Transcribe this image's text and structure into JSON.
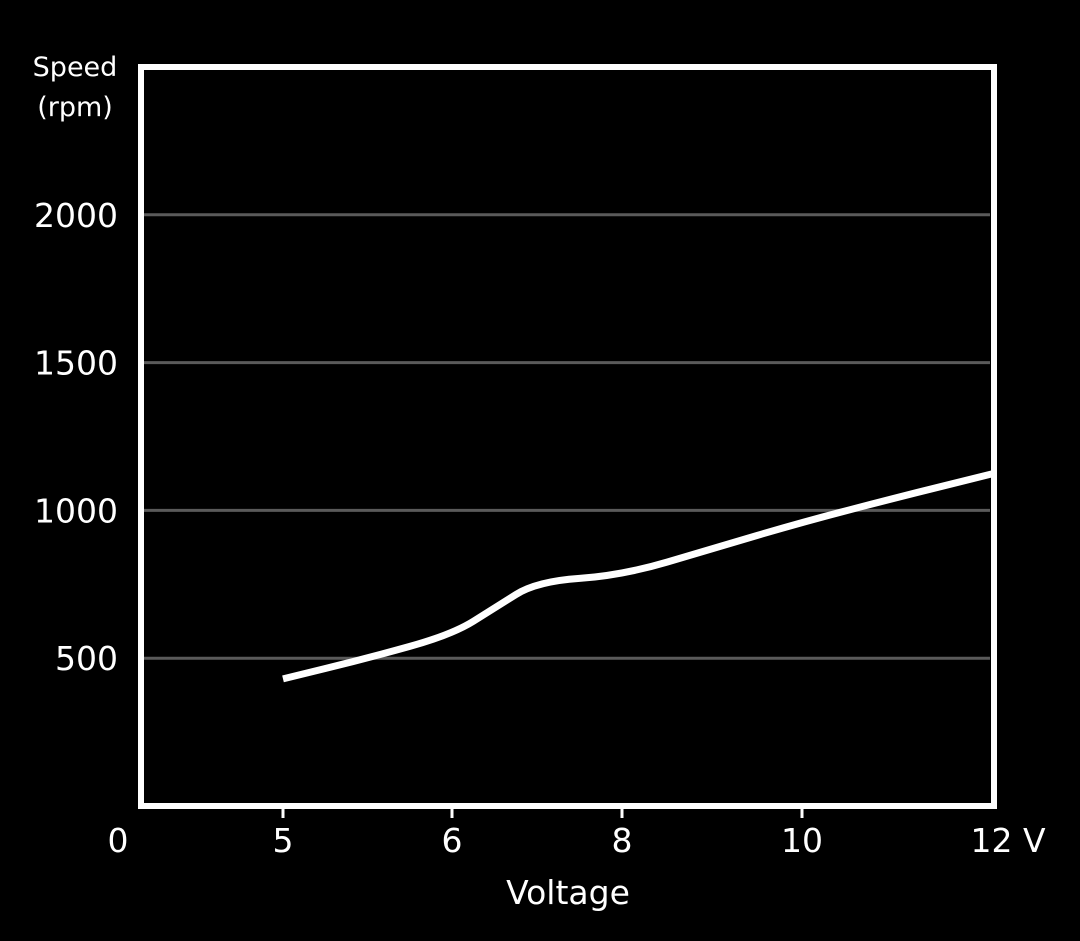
{
  "chart_data": {
    "type": "line",
    "title": "",
    "xlabel": "Voltage",
    "ylabel_line1": "Speed",
    "ylabel_line2": "(rpm)",
    "x_ticks": [
      {
        "label": "0"
      },
      {
        "label": "5"
      },
      {
        "label": "6"
      },
      {
        "label": "8"
      },
      {
        "label": "10"
      },
      {
        "label": "12 V"
      }
    ],
    "y_ticks": [
      500,
      1000,
      1500,
      2000
    ],
    "ylim": [
      0,
      2500
    ],
    "grid": "horizontal",
    "series": [
      {
        "color": "#ffffff",
        "points": [
          {
            "x": 5,
            "y": 430
          },
          {
            "x": 5.5,
            "y": 500
          },
          {
            "x": 6,
            "y": 580
          },
          {
            "x": 6.5,
            "y": 670
          },
          {
            "x": 7,
            "y": 760
          },
          {
            "x": 8,
            "y": 780
          },
          {
            "x": 9,
            "y": 870
          },
          {
            "x": 10,
            "y": 960
          },
          {
            "x": 11,
            "y": 1045
          },
          {
            "x": 12,
            "y": 1125
          }
        ]
      }
    ],
    "colors": {
      "background": "#000000",
      "frame": "#ffffff",
      "gridline": "#5a5a5a",
      "text": "#ffffff"
    }
  }
}
